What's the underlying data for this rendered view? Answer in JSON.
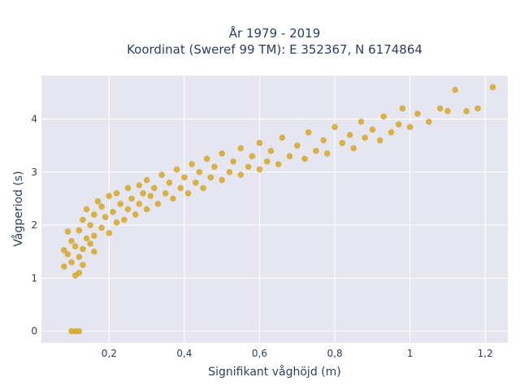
{
  "chart_data": {
    "type": "scatter",
    "title_line1": "År 1979 - 2019",
    "title_line2": "Koordinat (Sweref 99 TM): E 352367, N 6174864",
    "xlabel": "Signifikant våghöjd (m)",
    "ylabel": "Vågperiod (s)",
    "xlim": [
      0.02,
      1.26
    ],
    "ylim": [
      -0.22,
      4.82
    ],
    "x_ticks": [
      0.2,
      0.4,
      0.6,
      0.8,
      1.0,
      1.2
    ],
    "x_tick_labels": [
      "0,2",
      "0,4",
      "0,6",
      "0,8",
      "1",
      "1,2"
    ],
    "y_ticks": [
      0,
      1,
      2,
      3,
      4
    ],
    "y_tick_labels": [
      "0",
      "1",
      "2",
      "3",
      "4"
    ],
    "grid": true,
    "colors": {
      "marker": "#d4a21e",
      "plot_background": "#e5e6ef",
      "grid": "#ffffff",
      "text": "#2a3f5f"
    },
    "series": [
      {
        "points": [
          [
            0.08,
            1.22
          ],
          [
            0.08,
            1.53
          ],
          [
            0.09,
            1.45
          ],
          [
            0.1,
            1.3
          ],
          [
            0.1,
            1.7
          ],
          [
            0.11,
            1.6
          ],
          [
            0.12,
            1.4
          ],
          [
            0.12,
            1.9
          ],
          [
            0.13,
            1.55
          ],
          [
            0.13,
            2.1
          ],
          [
            0.14,
            1.75
          ],
          [
            0.14,
            2.3
          ],
          [
            0.15,
            1.65
          ],
          [
            0.15,
            2.0
          ],
          [
            0.16,
            2.2
          ],
          [
            0.16,
            1.8
          ],
          [
            0.17,
            2.45
          ],
          [
            0.18,
            1.95
          ],
          [
            0.18,
            2.35
          ],
          [
            0.19,
            2.15
          ],
          [
            0.2,
            2.55
          ],
          [
            0.2,
            1.85
          ],
          [
            0.21,
            2.25
          ],
          [
            0.22,
            2.05
          ],
          [
            0.22,
            2.6
          ],
          [
            0.23,
            2.4
          ],
          [
            0.24,
            2.1
          ],
          [
            0.25,
            2.7
          ],
          [
            0.25,
            2.3
          ],
          [
            0.26,
            2.5
          ],
          [
            0.27,
            2.2
          ],
          [
            0.28,
            2.75
          ],
          [
            0.28,
            2.4
          ],
          [
            0.29,
            2.6
          ],
          [
            0.3,
            2.3
          ],
          [
            0.3,
            2.85
          ],
          [
            0.31,
            2.55
          ],
          [
            0.32,
            2.7
          ],
          [
            0.33,
            2.4
          ],
          [
            0.34,
            2.95
          ],
          [
            0.35,
            2.6
          ],
          [
            0.36,
            2.8
          ],
          [
            0.37,
            2.5
          ],
          [
            0.38,
            3.05
          ],
          [
            0.39,
            2.7
          ],
          [
            0.4,
            2.9
          ],
          [
            0.41,
            2.6
          ],
          [
            0.42,
            3.15
          ],
          [
            0.43,
            2.8
          ],
          [
            0.44,
            3.0
          ],
          [
            0.45,
            2.7
          ],
          [
            0.46,
            3.25
          ],
          [
            0.47,
            2.9
          ],
          [
            0.48,
            3.1
          ],
          [
            0.5,
            2.85
          ],
          [
            0.5,
            3.35
          ],
          [
            0.52,
            3.0
          ],
          [
            0.53,
            3.2
          ],
          [
            0.55,
            2.95
          ],
          [
            0.55,
            3.45
          ],
          [
            0.57,
            3.1
          ],
          [
            0.58,
            3.3
          ],
          [
            0.6,
            3.05
          ],
          [
            0.6,
            3.55
          ],
          [
            0.62,
            3.2
          ],
          [
            0.63,
            3.4
          ],
          [
            0.65,
            3.15
          ],
          [
            0.66,
            3.65
          ],
          [
            0.68,
            3.3
          ],
          [
            0.7,
            3.5
          ],
          [
            0.72,
            3.25
          ],
          [
            0.73,
            3.75
          ],
          [
            0.75,
            3.4
          ],
          [
            0.77,
            3.6
          ],
          [
            0.78,
            3.35
          ],
          [
            0.8,
            3.85
          ],
          [
            0.82,
            3.55
          ],
          [
            0.84,
            3.7
          ],
          [
            0.85,
            3.45
          ],
          [
            0.87,
            3.95
          ],
          [
            0.88,
            3.65
          ],
          [
            0.9,
            3.8
          ],
          [
            0.92,
            3.6
          ],
          [
            0.93,
            4.05
          ],
          [
            0.95,
            3.75
          ],
          [
            0.97,
            3.9
          ],
          [
            0.98,
            4.2
          ],
          [
            1.0,
            3.85
          ],
          [
            1.02,
            4.1
          ],
          [
            1.05,
            3.95
          ],
          [
            1.08,
            4.2
          ],
          [
            1.1,
            4.15
          ],
          [
            1.12,
            4.55
          ],
          [
            1.15,
            4.15
          ],
          [
            1.18,
            4.2
          ],
          [
            1.22,
            4.6
          ],
          [
            0.1,
            0.0
          ],
          [
            0.11,
            0.0
          ],
          [
            0.12,
            0.0
          ],
          [
            0.11,
            1.05
          ],
          [
            0.12,
            1.1
          ],
          [
            0.09,
            1.88
          ],
          [
            0.13,
            1.25
          ],
          [
            0.16,
            1.5
          ]
        ]
      }
    ]
  }
}
